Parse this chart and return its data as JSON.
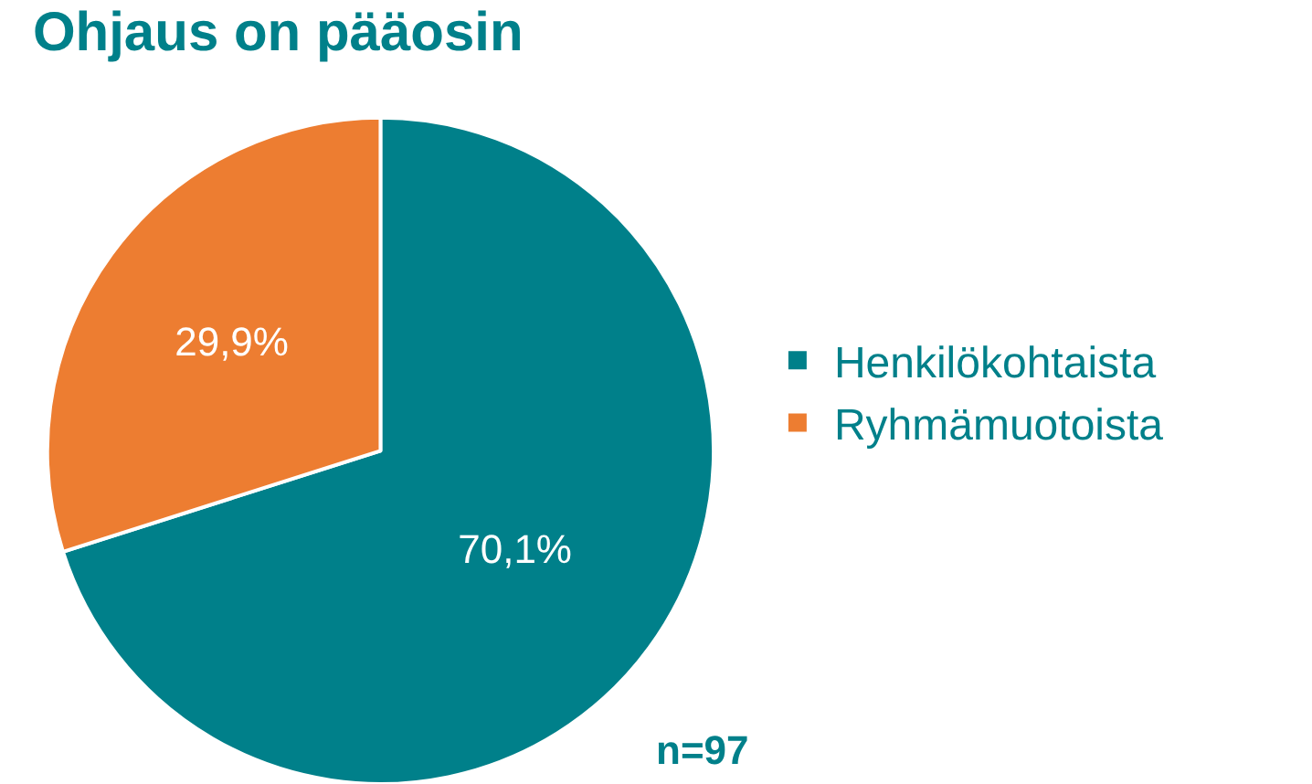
{
  "chart_data": {
    "type": "pie",
    "title": "Ohjaus on pääosin",
    "categories": [
      "Henkilökohtaista",
      "Ryhmämuotoista"
    ],
    "values": [
      70.1,
      29.9
    ],
    "colors": [
      "#00808a",
      "#ed7d31"
    ],
    "value_labels": [
      "70,1%",
      "29,9%"
    ],
    "legend": "right",
    "annotations": [
      "n=97"
    ]
  }
}
